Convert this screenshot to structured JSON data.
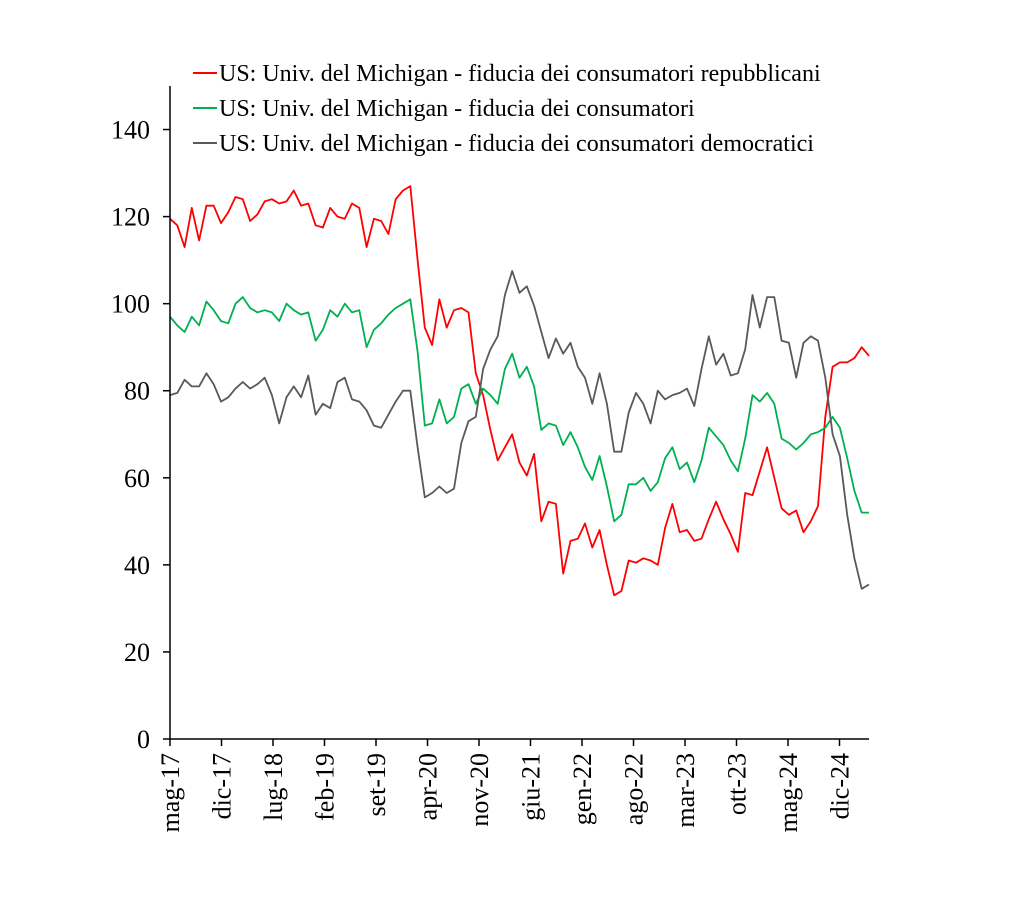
{
  "chart_data": {
    "type": "line",
    "title": "",
    "xlabel": "",
    "ylabel": "",
    "ylim": [
      0,
      150
    ],
    "yticks": [
      0,
      20,
      40,
      60,
      80,
      100,
      120,
      140
    ],
    "x_tick_labels": [
      "mag-17",
      "dic-17",
      "lug-18",
      "feb-19",
      "set-19",
      "apr-20",
      "nov-20",
      "giu-21",
      "gen-22",
      "ago-22",
      "mar-23",
      "ott-23",
      "mag-24",
      "dic-24"
    ],
    "legend_position": "top",
    "grid": false,
    "series": [
      {
        "name": "US: Univ. del Michigan - fiducia dei consumatori repubblicani",
        "color": "#ff0000",
        "values": [
          119.5,
          118,
          113,
          122,
          114.5,
          122.5,
          122.5,
          118.5,
          121,
          124.5,
          124,
          119,
          120.5,
          123.5,
          124,
          123,
          123.5,
          126,
          122.5,
          123,
          118,
          117.5,
          122,
          120,
          119.5,
          123,
          122,
          113,
          119.5,
          119,
          116,
          124,
          126,
          127,
          110,
          94.5,
          90.5,
          101,
          94.5,
          98.5,
          99,
          98,
          84,
          79,
          71,
          64,
          67,
          70,
          63.5,
          60.5,
          65.5,
          50,
          54.5,
          54,
          38,
          45.5,
          46,
          49.5,
          44,
          48,
          40,
          33,
          34,
          41,
          40.5,
          41.5,
          41,
          40,
          48.5,
          54,
          47.5,
          48,
          45.5,
          46,
          50.5,
          54.5,
          50.5,
          47,
          43,
          56.5,
          56,
          61.5,
          67,
          60,
          53,
          51.5,
          52.5,
          47.5,
          50,
          53.5,
          74,
          85.5,
          86.5,
          86.5,
          87.5,
          90,
          88
        ]
      },
      {
        "name": "US: Univ. del Michigan - fiducia dei consumatori",
        "color": "#00b050",
        "values": [
          97,
          95,
          93.5,
          97,
          95,
          100.5,
          98.5,
          96,
          95.5,
          100,
          101.5,
          99,
          98,
          98.5,
          98,
          96,
          100,
          98.5,
          97.5,
          98,
          91.5,
          94,
          98.5,
          97,
          100,
          98,
          98.5,
          90,
          94,
          95.5,
          97.5,
          99,
          100,
          101,
          89,
          72,
          72.5,
          78,
          72.5,
          74,
          80.5,
          81.5,
          77,
          80.5,
          79,
          77,
          85,
          88.5,
          83,
          85.5,
          81,
          71,
          72.5,
          72,
          67.5,
          70.5,
          67,
          62.5,
          59.5,
          65,
          58,
          50,
          51.5,
          58.5,
          58.5,
          60,
          57,
          59,
          64.5,
          67,
          62,
          63.5,
          59,
          64,
          71.5,
          69.5,
          67.5,
          64,
          61.5,
          69,
          79,
          77.5,
          79.5,
          77,
          69,
          68,
          66.5,
          68,
          70,
          70.5,
          71.5,
          74,
          71.5,
          64.5,
          57,
          52,
          52
        ]
      },
      {
        "name": "US: Univ. del Michigan - fiducia dei consumatori democratici",
        "color": "#595959",
        "values": [
          79,
          79.5,
          82.5,
          81,
          81,
          84,
          81.5,
          77.5,
          78.5,
          80.5,
          82,
          80.5,
          81.5,
          83,
          79,
          72.5,
          78.5,
          81,
          78.5,
          83.5,
          74.5,
          77,
          76,
          82,
          83,
          78,
          77.5,
          75.5,
          72,
          71.5,
          74.5,
          77.5,
          80,
          80,
          67,
          55.5,
          56.5,
          58,
          56.5,
          57.5,
          68,
          73,
          74,
          85,
          89.5,
          92.5,
          102,
          107.5,
          102.5,
          104,
          99.5,
          93.5,
          87.5,
          92,
          88.5,
          91,
          85.5,
          83,
          77,
          84,
          77,
          66,
          66,
          75,
          79.5,
          77,
          72.5,
          80,
          78,
          79,
          79.5,
          80.5,
          76.5,
          85,
          92.5,
          86,
          88.5,
          83.5,
          84,
          89.5,
          102,
          94.5,
          101.5,
          101.5,
          91.5,
          91,
          83,
          91,
          92.5,
          91.5,
          83,
          70,
          65,
          51.5,
          41.5,
          34.5,
          35.5
        ]
      }
    ]
  }
}
